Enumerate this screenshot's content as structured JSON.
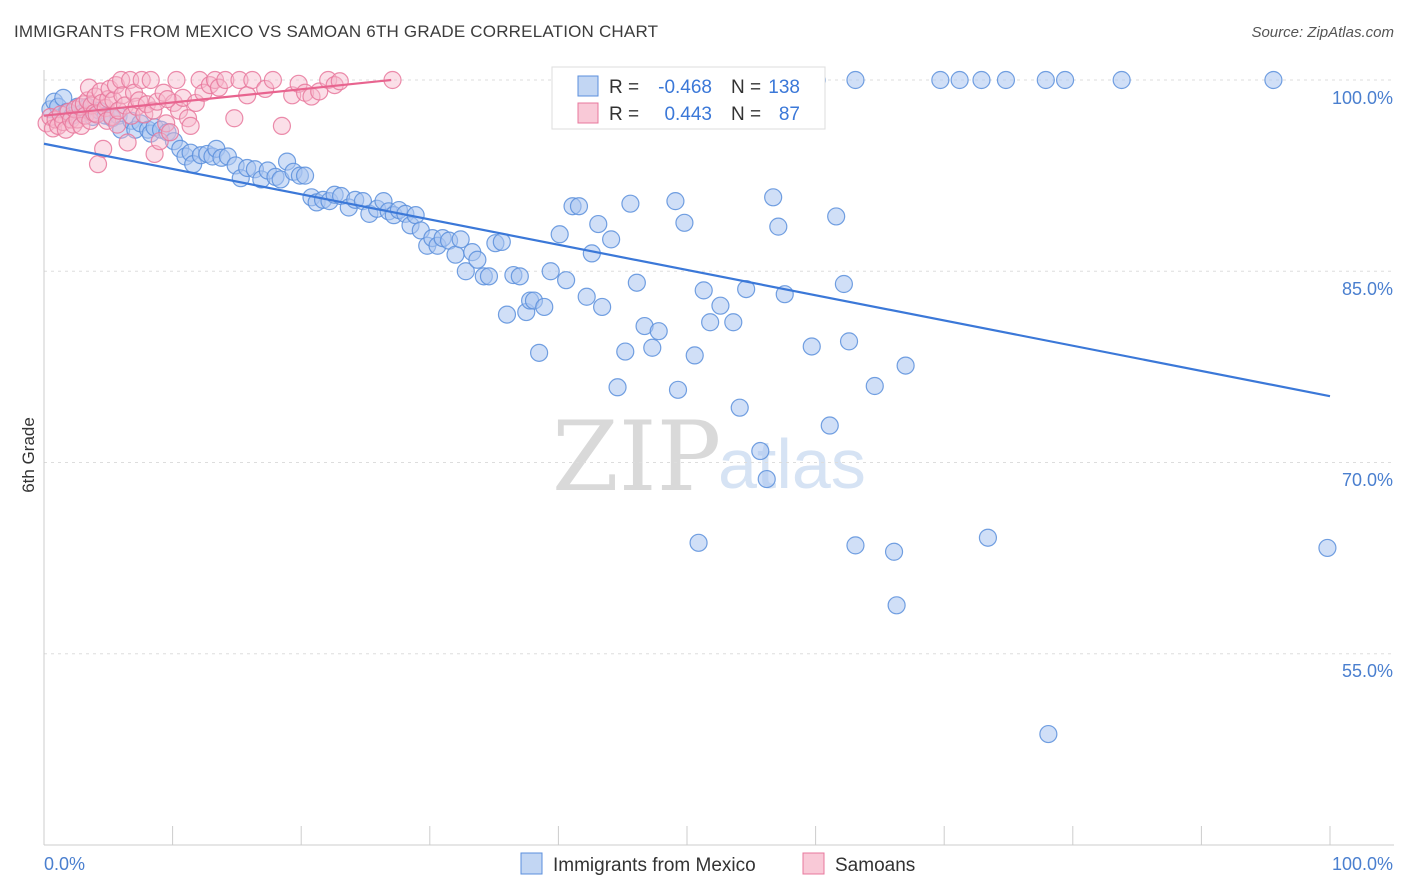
{
  "title": "IMMIGRANTS FROM MEXICO VS SAMOAN 6TH GRADE CORRELATION CHART",
  "source": "Source: ZipAtlas.com",
  "watermark": {
    "zip": "ZIP",
    "atlas": "atlas"
  },
  "colors": {
    "blue": "#3b78d8",
    "blue_fill": "#a9c5f0",
    "pink": "#e8648f",
    "pink_fill": "#f7b8cb",
    "grid": "#dddddd"
  },
  "chart_data": {
    "type": "scatter",
    "xlabel": "",
    "ylabel": "6th Grade",
    "xlim": [
      0,
      100
    ],
    "ylim": [
      41,
      101
    ],
    "x_tick_labels": [
      {
        "value": 0,
        "label": "0.0%"
      },
      {
        "value": 100,
        "label": "100.0%"
      }
    ],
    "y_tick_labels": [
      {
        "value": 100,
        "label": "100.0%"
      },
      {
        "value": 85,
        "label": "85.0%"
      },
      {
        "value": 70,
        "label": "70.0%"
      },
      {
        "value": 55,
        "label": "55.0%"
      }
    ],
    "grid": true,
    "legend_position": "top-center",
    "series": [
      {
        "name": "Immigrants from Mexico",
        "color": "#3b78d8",
        "R": "-0.468",
        "N": "138",
        "trend": {
          "x": [
            0,
            100
          ],
          "y": [
            95.0,
            75.2
          ]
        },
        "points": [
          [
            0.5,
            97.7
          ],
          [
            0.8,
            98.3
          ],
          [
            1.1,
            97.9
          ],
          [
            1.5,
            98.6
          ],
          [
            1.8,
            97.5
          ],
          [
            2.2,
            97.2
          ],
          [
            2.6,
            97.9
          ],
          [
            3.0,
            97.4
          ],
          [
            3.4,
            97.9
          ],
          [
            3.8,
            97.1
          ],
          [
            4.3,
            97.6
          ],
          [
            4.8,
            97.2
          ],
          [
            5.3,
            97.0
          ],
          [
            5.8,
            97.2
          ],
          [
            6.0,
            96.1
          ],
          [
            6.8,
            96.8
          ],
          [
            7.1,
            96.1
          ],
          [
            7.5,
            96.6
          ],
          [
            8.1,
            96.1
          ],
          [
            8.3,
            95.8
          ],
          [
            8.6,
            96.3
          ],
          [
            9.1,
            96.1
          ],
          [
            9.6,
            95.9
          ],
          [
            10.1,
            95.2
          ],
          [
            10.6,
            94.6
          ],
          [
            11.0,
            94.0
          ],
          [
            11.4,
            94.3
          ],
          [
            11.6,
            93.4
          ],
          [
            12.2,
            94.1
          ],
          [
            12.7,
            94.2
          ],
          [
            13.1,
            94.0
          ],
          [
            13.4,
            94.6
          ],
          [
            13.8,
            93.9
          ],
          [
            14.3,
            94.0
          ],
          [
            14.9,
            93.3
          ],
          [
            15.3,
            92.3
          ],
          [
            15.8,
            93.1
          ],
          [
            16.4,
            93.0
          ],
          [
            16.9,
            92.2
          ],
          [
            17.4,
            92.9
          ],
          [
            18.0,
            92.4
          ],
          [
            18.4,
            92.2
          ],
          [
            18.9,
            93.6
          ],
          [
            19.4,
            92.8
          ],
          [
            19.9,
            92.5
          ],
          [
            20.3,
            92.5
          ],
          [
            20.8,
            90.8
          ],
          [
            21.2,
            90.4
          ],
          [
            21.7,
            90.6
          ],
          [
            22.2,
            90.5
          ],
          [
            22.6,
            91.0
          ],
          [
            23.1,
            90.9
          ],
          [
            23.7,
            90.0
          ],
          [
            24.2,
            90.6
          ],
          [
            24.8,
            90.5
          ],
          [
            25.3,
            89.5
          ],
          [
            25.9,
            89.9
          ],
          [
            26.4,
            90.5
          ],
          [
            26.8,
            89.7
          ],
          [
            27.2,
            89.4
          ],
          [
            27.6,
            89.8
          ],
          [
            28.1,
            89.5
          ],
          [
            28.5,
            88.6
          ],
          [
            28.9,
            89.4
          ],
          [
            29.3,
            88.2
          ],
          [
            29.8,
            87.0
          ],
          [
            30.2,
            87.6
          ],
          [
            30.6,
            87.0
          ],
          [
            31.0,
            87.6
          ],
          [
            31.5,
            87.4
          ],
          [
            32.0,
            86.3
          ],
          [
            32.4,
            87.5
          ],
          [
            32.8,
            85.0
          ],
          [
            33.3,
            86.5
          ],
          [
            33.7,
            85.9
          ],
          [
            34.2,
            84.6
          ],
          [
            34.6,
            84.6
          ],
          [
            35.1,
            87.2
          ],
          [
            35.6,
            87.3
          ],
          [
            36.0,
            81.6
          ],
          [
            36.5,
            84.7
          ],
          [
            37.0,
            84.6
          ],
          [
            37.5,
            81.8
          ],
          [
            37.8,
            82.7
          ],
          [
            38.1,
            82.7
          ],
          [
            38.5,
            78.6
          ],
          [
            38.9,
            82.2
          ],
          [
            39.4,
            85.0
          ],
          [
            40.1,
            87.9
          ],
          [
            40.6,
            84.3
          ],
          [
            41.1,
            90.1
          ],
          [
            41.6,
            90.1
          ],
          [
            42.2,
            83.0
          ],
          [
            42.6,
            86.4
          ],
          [
            43.1,
            88.7
          ],
          [
            43.4,
            82.2
          ],
          [
            44.1,
            87.5
          ],
          [
            44.6,
            75.9
          ],
          [
            45.2,
            78.7
          ],
          [
            45.6,
            90.3
          ],
          [
            46.1,
            84.1
          ],
          [
            46.7,
            80.7
          ],
          [
            47.3,
            79.0
          ],
          [
            47.8,
            80.3
          ],
          [
            49.1,
            90.5
          ],
          [
            49.3,
            75.7
          ],
          [
            49.8,
            88.8
          ],
          [
            50.6,
            78.4
          ],
          [
            50.9,
            63.7
          ],
          [
            51.3,
            83.5
          ],
          [
            51.8,
            81.0
          ],
          [
            52.6,
            82.3
          ],
          [
            53.6,
            81.0
          ],
          [
            54.1,
            74.3
          ],
          [
            54.6,
            83.6
          ],
          [
            55.7,
            70.9
          ],
          [
            56.2,
            68.7
          ],
          [
            56.7,
            90.8
          ],
          [
            57.1,
            88.5
          ],
          [
            57.6,
            83.2
          ],
          [
            59.7,
            79.1
          ],
          [
            61.1,
            72.9
          ],
          [
            61.6,
            89.3
          ],
          [
            62.2,
            84.0
          ],
          [
            62.6,
            79.5
          ],
          [
            63.1,
            63.5
          ],
          [
            64.6,
            76.0
          ],
          [
            66.1,
            63.0
          ],
          [
            66.3,
            58.8
          ],
          [
            67.0,
            77.6
          ],
          [
            73.4,
            64.1
          ],
          [
            78.1,
            48.7
          ],
          [
            99.8,
            63.3
          ],
          [
            47.2,
            100.0
          ],
          [
            57.6,
            100.0
          ],
          [
            60.1,
            100.0
          ],
          [
            63.1,
            100.0
          ],
          [
            69.7,
            100.0
          ],
          [
            71.2,
            100.0
          ],
          [
            72.9,
            100.0
          ],
          [
            74.8,
            100.0
          ],
          [
            77.9,
            100.0
          ],
          [
            79.4,
            100.0
          ],
          [
            83.8,
            100.0
          ],
          [
            95.6,
            100.0
          ]
        ]
      },
      {
        "name": "Samoans",
        "color": "#e8648f",
        "R": "0.443",
        "N": "87",
        "trend": {
          "x": [
            0,
            27
          ],
          "y": [
            97.2,
            100.0
          ]
        },
        "points": [
          [
            0.2,
            96.6
          ],
          [
            0.5,
            97.1
          ],
          [
            0.7,
            96.2
          ],
          [
            0.9,
            96.9
          ],
          [
            1.1,
            96.4
          ],
          [
            1.3,
            97.3
          ],
          [
            1.5,
            96.7
          ],
          [
            1.7,
            96.1
          ],
          [
            1.9,
            97.5
          ],
          [
            2.1,
            96.9
          ],
          [
            2.3,
            96.5
          ],
          [
            2.4,
            97.7
          ],
          [
            2.6,
            96.9
          ],
          [
            2.8,
            97.9
          ],
          [
            2.9,
            96.4
          ],
          [
            3.1,
            98.1
          ],
          [
            3.2,
            97.2
          ],
          [
            3.4,
            98.4
          ],
          [
            3.5,
            99.4
          ],
          [
            3.6,
            96.8
          ],
          [
            3.7,
            98.0
          ],
          [
            3.9,
            97.4
          ],
          [
            4.0,
            98.7
          ],
          [
            4.1,
            97.3
          ],
          [
            4.2,
            93.4
          ],
          [
            4.4,
            99.1
          ],
          [
            4.5,
            98.2
          ],
          [
            4.6,
            94.6
          ],
          [
            4.8,
            97.8
          ],
          [
            4.9,
            96.8
          ],
          [
            5.0,
            98.5
          ],
          [
            5.1,
            99.3
          ],
          [
            5.3,
            97.1
          ],
          [
            5.4,
            98.4
          ],
          [
            5.6,
            99.6
          ],
          [
            5.7,
            96.5
          ],
          [
            5.8,
            97.6
          ],
          [
            6.0,
            100.0
          ],
          [
            6.1,
            98.8
          ],
          [
            6.3,
            98.0
          ],
          [
            6.5,
            95.1
          ],
          [
            6.7,
            100.0
          ],
          [
            6.8,
            97.2
          ],
          [
            7.0,
            99.0
          ],
          [
            7.2,
            97.9
          ],
          [
            7.4,
            98.4
          ],
          [
            7.6,
            100.0
          ],
          [
            7.8,
            97.3
          ],
          [
            8.0,
            98.1
          ],
          [
            8.3,
            100.0
          ],
          [
            8.5,
            97.6
          ],
          [
            8.6,
            94.2
          ],
          [
            8.8,
            98.3
          ],
          [
            9.0,
            95.2
          ],
          [
            9.3,
            99.0
          ],
          [
            9.5,
            96.6
          ],
          [
            9.8,
            95.9
          ],
          [
            10.1,
            98.2
          ],
          [
            10.3,
            100.0
          ],
          [
            10.5,
            97.6
          ],
          [
            10.8,
            98.6
          ],
          [
            11.2,
            97.0
          ],
          [
            11.4,
            96.4
          ],
          [
            11.8,
            98.2
          ],
          [
            12.1,
            100.0
          ],
          [
            12.4,
            99.0
          ],
          [
            12.9,
            99.6
          ],
          [
            13.3,
            100.0
          ],
          [
            13.6,
            99.4
          ],
          [
            14.1,
            100.0
          ],
          [
            14.8,
            97.0
          ],
          [
            15.2,
            100.0
          ],
          [
            15.8,
            98.8
          ],
          [
            16.2,
            100.0
          ],
          [
            17.2,
            99.3
          ],
          [
            17.8,
            100.0
          ],
          [
            18.5,
            96.4
          ],
          [
            19.3,
            98.8
          ],
          [
            19.8,
            99.7
          ],
          [
            20.3,
            99.0
          ],
          [
            20.8,
            98.7
          ],
          [
            21.4,
            99.1
          ],
          [
            22.1,
            100.0
          ],
          [
            22.6,
            99.6
          ],
          [
            23.0,
            99.9
          ],
          [
            27.1,
            100.0
          ],
          [
            9.6,
            98.5
          ]
        ]
      }
    ]
  },
  "legend": {
    "rows": [
      {
        "r_label": "R =",
        "r_value": "-0.468",
        "n_label": "N =",
        "n_value": "138"
      },
      {
        "r_label": "R =",
        "r_value": "0.443",
        "n_label": "N =",
        "n_value": "87"
      }
    ],
    "bottom": [
      "Immigrants from Mexico",
      "Samoans"
    ]
  }
}
